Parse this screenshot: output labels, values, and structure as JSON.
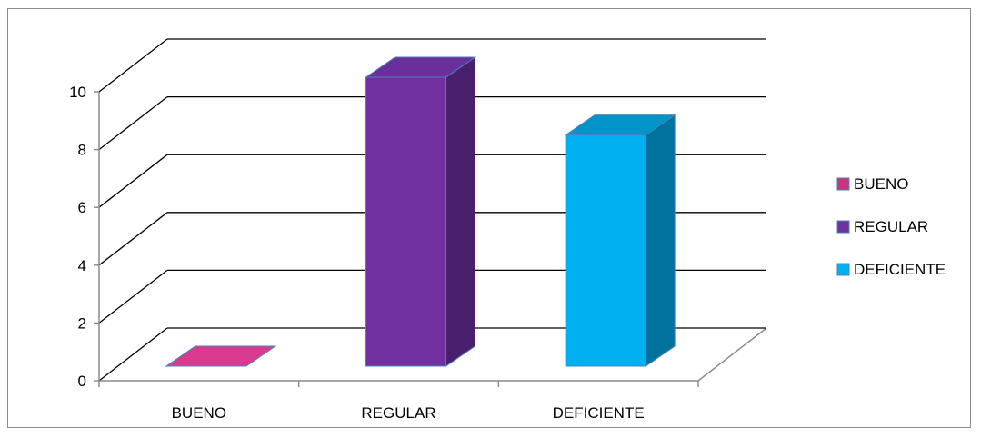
{
  "chart_data": {
    "type": "bar",
    "style": "3d-column",
    "title": "",
    "xlabel": "",
    "ylabel": "",
    "categories": [
      "BUENO",
      "REGULAR",
      "DEFICIENTE"
    ],
    "values": [
      0,
      10,
      8
    ],
    "ylim": [
      0,
      10
    ],
    "yticks": [
      "0",
      "2",
      "4",
      "6",
      "8",
      "10"
    ],
    "grid": true,
    "legend_position": "right",
    "legend": [
      "BUENO",
      "REGULAR",
      "DEFICIENTE"
    ],
    "colors": {
      "BUENO": {
        "front": "#c7357f",
        "top": "#d9398f",
        "side": "#8f2060"
      },
      "REGULAR": {
        "front": "#7030a0",
        "top": "#6a2f9a",
        "side": "#4a1f6e"
      },
      "DEFICIENTE": {
        "front": "#00b0f0",
        "top": "#0094c8",
        "side": "#00729c"
      }
    },
    "bar_outline": "#4f81bd",
    "gridline_color": "#000000",
    "axis_color": "#8c8c8c"
  }
}
